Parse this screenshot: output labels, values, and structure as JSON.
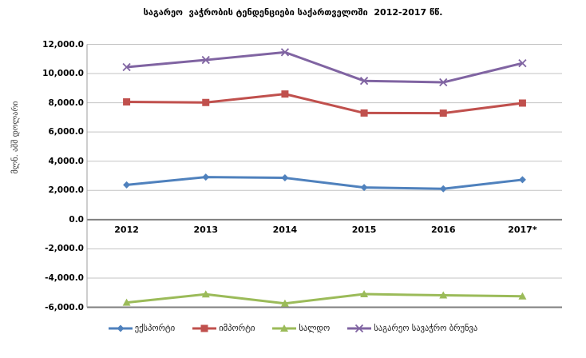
{
  "title": "საგარეო  ვაჭრობის ტენდენციები საქართველოში  2012-2017 წწ.",
  "chart_data": {
    "type": "line",
    "title": "საგარეო  ვაჭრობის ტენდენციები საქართველოში  2012-2017 წწ.",
    "xlabel": "",
    "ylabel": "მლნ. აშშ დოლარი",
    "categories": [
      "2012",
      "2013",
      "2014",
      "2015",
      "2016",
      "2017*"
    ],
    "series": [
      {
        "name": "ექსპორტი",
        "marker": "diamond",
        "color": "#4F81BD",
        "values": [
          2380,
          2910,
          2860,
          2200,
          2110,
          2730
        ]
      },
      {
        "name": "იმპორტი",
        "marker": "square",
        "color": "#C0504D",
        "values": [
          8060,
          8020,
          8600,
          7300,
          7290,
          7980
        ]
      },
      {
        "name": "სალდო",
        "marker": "triangle",
        "color": "#9BBB59",
        "values": [
          -5680,
          -5110,
          -5740,
          -5100,
          -5180,
          -5250
        ]
      },
      {
        "name": "საგარეო სავაჭრო ბრუნვა",
        "marker": "x",
        "color": "#8064A2",
        "values": [
          10440,
          10930,
          11460,
          9500,
          9400,
          10710
        ]
      }
    ],
    "y_axis": {
      "min": -6000,
      "max": 12000,
      "step": 2000,
      "tick_labels": [
        "12,000.0",
        "10,000.0",
        "8,000.0",
        "6,000.0",
        "4,000.0",
        "2,000.0",
        "0.0",
        "-2,000.0",
        "-4,000.0",
        "-6,000.0"
      ]
    },
    "grid": true,
    "legend_position": "bottom",
    "colors": {
      "gridline": "#C3C3C3",
      "zero_line": "#7F7F7F",
      "plot_bottom_line": "#7F7F7F",
      "left_axis_line": "#9E9E9E",
      "text": "#000000"
    }
  }
}
